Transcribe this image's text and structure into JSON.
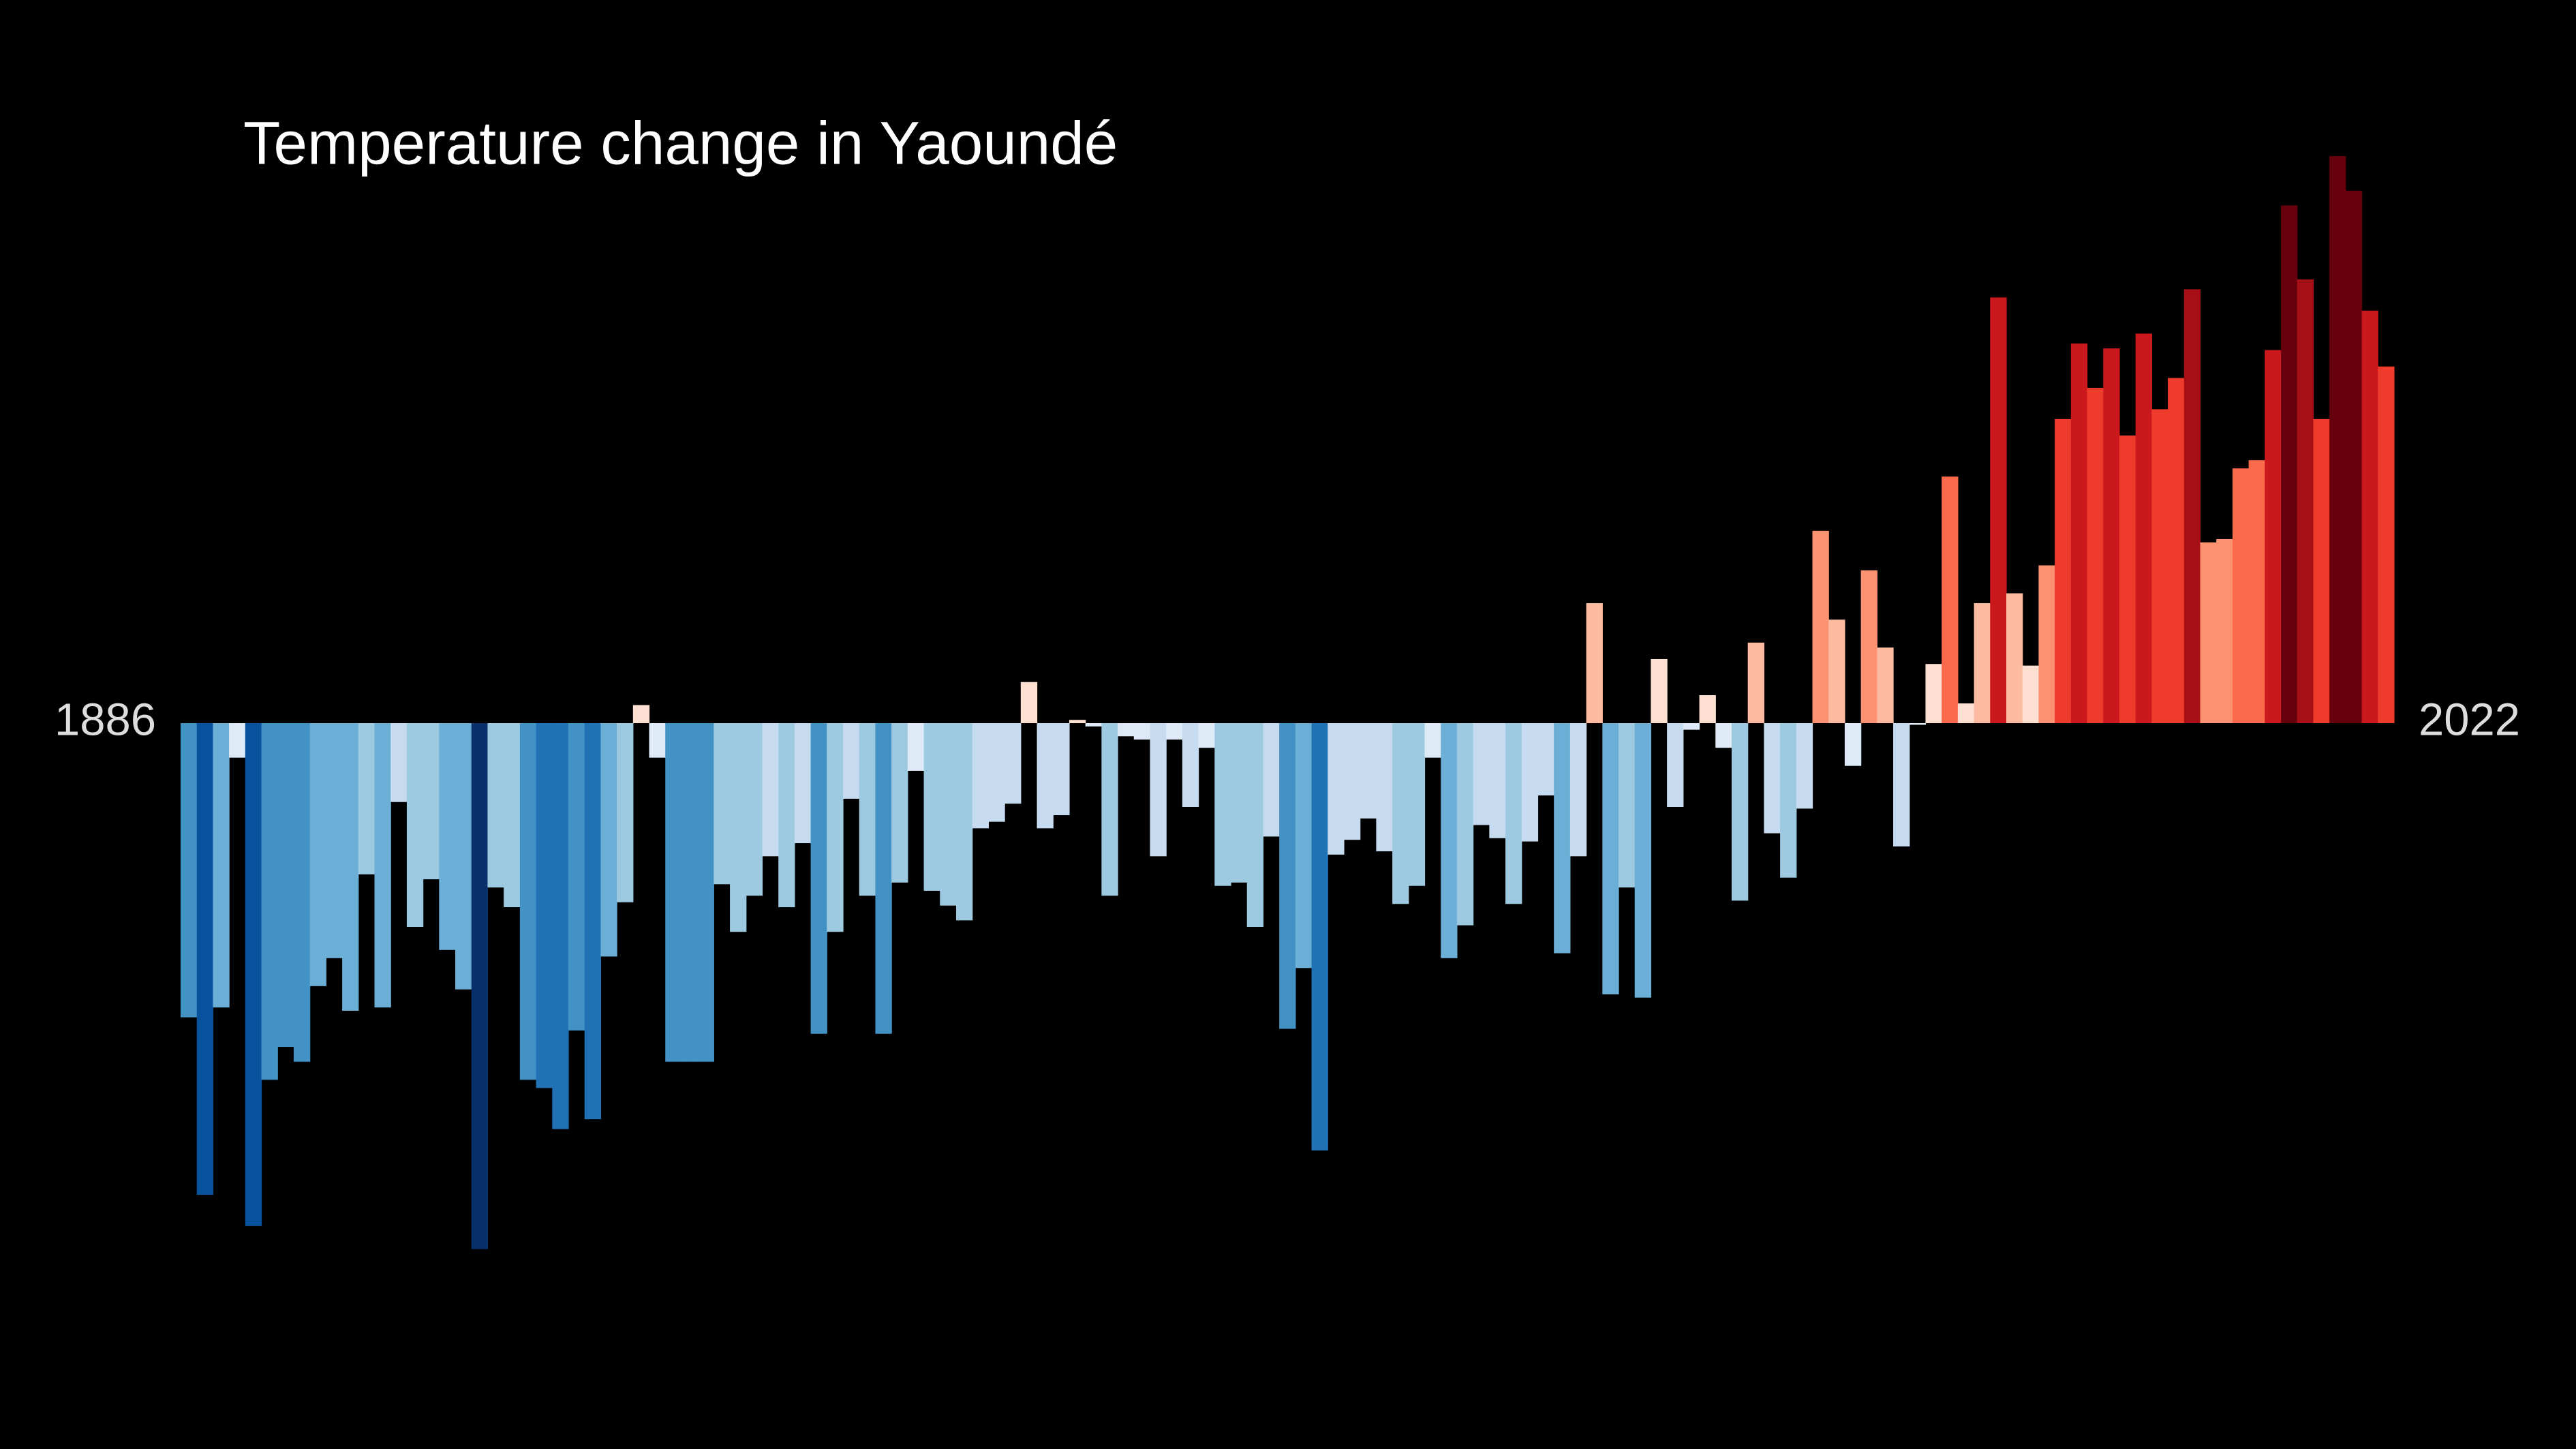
{
  "chart_data": {
    "type": "bar",
    "title": "Temperature change in Yaoundé",
    "categories": [
      "1886",
      null,
      null,
      null,
      null,
      null,
      null,
      null,
      null,
      null,
      null,
      null,
      null,
      null,
      null,
      null,
      null,
      null,
      null,
      null,
      null,
      null,
      null,
      null,
      null,
      null,
      null,
      null,
      null,
      null,
      null,
      null,
      null,
      null,
      null,
      null,
      null,
      null,
      null,
      null,
      null,
      null,
      null,
      null,
      null,
      null,
      null,
      null,
      null,
      null,
      null,
      null,
      null,
      null,
      null,
      null,
      null,
      null,
      null,
      null,
      null,
      null,
      null,
      null,
      null,
      null,
      null,
      null,
      null,
      null,
      null,
      null,
      null,
      null,
      null,
      null,
      null,
      null,
      null,
      null,
      null,
      null,
      null,
      null,
      null,
      null,
      null,
      null,
      null,
      null,
      null,
      null,
      null,
      null,
      null,
      null,
      null,
      null,
      null,
      null,
      null,
      null,
      null,
      null,
      null,
      null,
      null,
      null,
      null,
      null,
      null,
      null,
      null,
      null,
      null,
      null,
      null,
      null,
      null,
      null,
      null,
      null,
      null,
      null,
      null,
      null,
      null,
      null,
      null,
      null,
      null,
      null,
      null,
      null,
      null,
      null,
      "2022"
    ],
    "values": [
      -1.79,
      -2.87,
      -1.73,
      -0.21,
      -3.06,
      -2.17,
      -1.97,
      -2.06,
      -1.6,
      -1.43,
      -1.75,
      -0.92,
      -1.73,
      -0.48,
      -1.24,
      -0.95,
      -1.38,
      -1.62,
      -3.2,
      -1.0,
      -1.12,
      -2.17,
      -2.22,
      -2.47,
      -1.87,
      -2.41,
      -1.42,
      -1.09,
      0.11,
      -0.21,
      -2.06,
      -2.06,
      -2.06,
      -0.98,
      -1.27,
      -1.05,
      -0.81,
      -1.12,
      -0.73,
      -1.89,
      -1.27,
      -0.46,
      -1.05,
      -1.89,
      -0.97,
      -0.29,
      -1.02,
      -1.11,
      -1.2,
      -0.64,
      -0.6,
      -0.49,
      0.25,
      -0.64,
      -0.56,
      0.02,
      -0.02,
      -1.05,
      -0.08,
      -0.1,
      -0.81,
      -0.1,
      -0.51,
      -0.15,
      -0.99,
      -0.97,
      -1.24,
      -0.69,
      -1.86,
      -1.49,
      -2.6,
      -0.8,
      -0.71,
      -0.58,
      -0.78,
      -1.1,
      -0.99,
      -0.21,
      -1.43,
      -1.23,
      -0.62,
      -0.7,
      -1.1,
      -0.72,
      -0.44,
      -1.4,
      -0.81,
      0.73,
      -1.65,
      -1.0,
      -1.67,
      0.39,
      -0.51,
      -0.04,
      0.17,
      -0.15,
      -1.08,
      0.49,
      -0.67,
      -0.94,
      -0.52,
      1.17,
      0.63,
      -0.26,
      0.93,
      0.46,
      -0.75,
      -0.01,
      0.36,
      1.5,
      0.12,
      0.73,
      2.59,
      0.79,
      0.35,
      0.96,
      1.85,
      2.31,
      2.04,
      2.28,
      1.75,
      2.37,
      1.91,
      2.1,
      2.64,
      1.1,
      1.12,
      1.55,
      1.6,
      2.27,
      3.15,
      2.7,
      1.85,
      3.45,
      3.24,
      2.51,
      2.17
    ],
    "ylim": [
      -3.5,
      3.5
    ],
    "colormap": [
      "#08306b",
      "#08519c",
      "#2171b5",
      "#4292c6",
      "#6baed6",
      "#9ecae1",
      "#c6dbef",
      "#deebf7",
      "#fee0d2",
      "#fcbba1",
      "#fc9272",
      "#fb6a4a",
      "#ef3b2c",
      "#cb181d",
      "#a50f15",
      "#67000d"
    ],
    "grid": false
  }
}
